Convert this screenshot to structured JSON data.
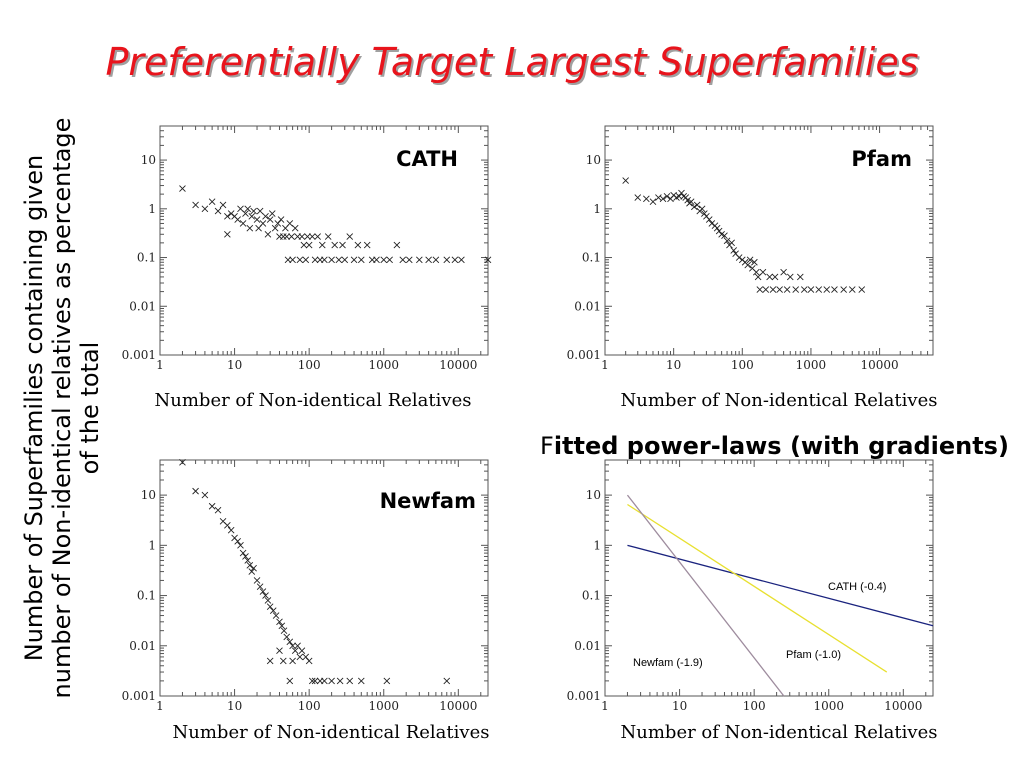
{
  "slide": {
    "title": "Preferentially Target Largest Superfamilies",
    "ylabel": "Number of Superfamilies containing given number of Non-identical relatives as percentage of the total",
    "fitted_heading_first": "F",
    "fitted_heading_rest": "itted power-laws (with gradients)"
  },
  "chart_data": [
    {
      "type": "scatter",
      "title": "CATH",
      "xlabel": "Number of Non-identical Relatives",
      "xscale": "log",
      "yscale": "log",
      "xlim": [
        1,
        25000
      ],
      "ylim": [
        0.001,
        50
      ],
      "xticks": [
        "1",
        "10",
        "100",
        "1000",
        "10000"
      ],
      "yticks": [
        "0.001",
        "0.01",
        "0.1",
        "1",
        "10"
      ],
      "marker": "x",
      "points": [
        [
          2,
          2.6
        ],
        [
          3,
          1.2
        ],
        [
          4,
          1.0
        ],
        [
          5,
          1.4
        ],
        [
          6,
          0.9
        ],
        [
          7,
          1.2
        ],
        [
          8,
          0.7
        ],
        [
          8,
          0.3
        ],
        [
          9,
          0.8
        ],
        [
          10,
          0.7
        ],
        [
          11,
          0.6
        ],
        [
          12,
          1.0
        ],
        [
          13,
          0.5
        ],
        [
          14,
          0.8
        ],
        [
          15,
          1.0
        ],
        [
          16,
          0.4
        ],
        [
          17,
          0.7
        ],
        [
          18,
          0.9
        ],
        [
          20,
          0.6
        ],
        [
          21,
          0.4
        ],
        [
          22,
          0.9
        ],
        [
          24,
          0.5
        ],
        [
          26,
          0.7
        ],
        [
          28,
          0.3
        ],
        [
          30,
          0.6
        ],
        [
          32,
          0.8
        ],
        [
          35,
          0.4
        ],
        [
          38,
          0.5
        ],
        [
          40,
          0.27
        ],
        [
          42,
          0.6
        ],
        [
          45,
          0.27
        ],
        [
          48,
          0.4
        ],
        [
          50,
          0.27
        ],
        [
          52,
          0.09
        ],
        [
          55,
          0.5
        ],
        [
          58,
          0.27
        ],
        [
          60,
          0.09
        ],
        [
          65,
          0.4
        ],
        [
          70,
          0.27
        ],
        [
          75,
          0.09
        ],
        [
          80,
          0.27
        ],
        [
          85,
          0.18
        ],
        [
          90,
          0.09
        ],
        [
          95,
          0.27
        ],
        [
          100,
          0.18
        ],
        [
          110,
          0.27
        ],
        [
          120,
          0.09
        ],
        [
          130,
          0.27
        ],
        [
          140,
          0.09
        ],
        [
          150,
          0.18
        ],
        [
          160,
          0.09
        ],
        [
          180,
          0.27
        ],
        [
          200,
          0.09
        ],
        [
          220,
          0.18
        ],
        [
          250,
          0.09
        ],
        [
          280,
          0.18
        ],
        [
          300,
          0.09
        ],
        [
          350,
          0.27
        ],
        [
          400,
          0.09
        ],
        [
          450,
          0.18
        ],
        [
          500,
          0.09
        ],
        [
          600,
          0.18
        ],
        [
          700,
          0.09
        ],
        [
          800,
          0.09
        ],
        [
          1000,
          0.09
        ],
        [
          1200,
          0.09
        ],
        [
          1500,
          0.18
        ],
        [
          1800,
          0.09
        ],
        [
          2200,
          0.09
        ],
        [
          3000,
          0.09
        ],
        [
          4000,
          0.09
        ],
        [
          5000,
          0.09
        ],
        [
          7000,
          0.09
        ],
        [
          9000,
          0.09
        ],
        [
          11000,
          0.09
        ],
        [
          25000,
          0.09
        ]
      ]
    },
    {
      "type": "scatter",
      "title": "Pfam",
      "xlabel": "Number of Non-identical Relatives",
      "xscale": "log",
      "yscale": "log",
      "xlim": [
        1,
        60000
      ],
      "ylim": [
        0.001,
        50
      ],
      "xticks": [
        "1",
        "10",
        "100",
        "1000",
        "10000"
      ],
      "yticks": [
        "0.001",
        "0.01",
        "0.1",
        "1",
        "10"
      ],
      "marker": "x",
      "points": [
        [
          2,
          3.8
        ],
        [
          3,
          1.7
        ],
        [
          4,
          1.6
        ],
        [
          5,
          1.4
        ],
        [
          6,
          1.7
        ],
        [
          7,
          1.6
        ],
        [
          8,
          1.8
        ],
        [
          9,
          1.6
        ],
        [
          10,
          1.9
        ],
        [
          11,
          1.7
        ],
        [
          12,
          1.8
        ],
        [
          13,
          2.1
        ],
        [
          14,
          1.8
        ],
        [
          15,
          1.7
        ],
        [
          16,
          1.5
        ],
        [
          17,
          1.3
        ],
        [
          18,
          1.4
        ],
        [
          20,
          1.1
        ],
        [
          22,
          1.2
        ],
        [
          24,
          0.9
        ],
        [
          26,
          1.0
        ],
        [
          28,
          0.8
        ],
        [
          30,
          0.7
        ],
        [
          33,
          0.6
        ],
        [
          36,
          0.5
        ],
        [
          40,
          0.45
        ],
        [
          43,
          0.4
        ],
        [
          46,
          0.35
        ],
        [
          50,
          0.3
        ],
        [
          55,
          0.28
        ],
        [
          60,
          0.22
        ],
        [
          65,
          0.18
        ],
        [
          70,
          0.2
        ],
        [
          75,
          0.14
        ],
        [
          80,
          0.12
        ],
        [
          90,
          0.1
        ],
        [
          100,
          0.09
        ],
        [
          110,
          0.08
        ],
        [
          120,
          0.07
        ],
        [
          130,
          0.09
        ],
        [
          140,
          0.06
        ],
        [
          150,
          0.08
        ],
        [
          160,
          0.05
        ],
        [
          170,
          0.04
        ],
        [
          180,
          0.022
        ],
        [
          200,
          0.05
        ],
        [
          220,
          0.022
        ],
        [
          250,
          0.04
        ],
        [
          280,
          0.022
        ],
        [
          300,
          0.04
        ],
        [
          350,
          0.022
        ],
        [
          400,
          0.05
        ],
        [
          450,
          0.022
        ],
        [
          500,
          0.04
        ],
        [
          600,
          0.022
        ],
        [
          700,
          0.04
        ],
        [
          800,
          0.022
        ],
        [
          1000,
          0.022
        ],
        [
          1300,
          0.022
        ],
        [
          1700,
          0.022
        ],
        [
          2200,
          0.022
        ],
        [
          3000,
          0.022
        ],
        [
          4000,
          0.022
        ],
        [
          5500,
          0.022
        ]
      ]
    },
    {
      "type": "scatter",
      "title": "Newfam",
      "xlabel": "Number of Non-identical Relatives",
      "xscale": "log",
      "yscale": "log",
      "xlim": [
        1,
        25000
      ],
      "ylim": [
        0.001,
        50
      ],
      "xticks": [
        "1",
        "10",
        "100",
        "1000",
        "10000"
      ],
      "yticks": [
        "0.001",
        "0.01",
        "0.1",
        "1",
        "10"
      ],
      "marker": "x",
      "points": [
        [
          2,
          45
        ],
        [
          3,
          12
        ],
        [
          4,
          10
        ],
        [
          5,
          6
        ],
        [
          6,
          5
        ],
        [
          7,
          3
        ],
        [
          8,
          2.5
        ],
        [
          9,
          2
        ],
        [
          10,
          1.4
        ],
        [
          11,
          1.2
        ],
        [
          12,
          1
        ],
        [
          13,
          0.7
        ],
        [
          14,
          0.6
        ],
        [
          15,
          0.5
        ],
        [
          16,
          0.4
        ],
        [
          17,
          0.3
        ],
        [
          18,
          0.35
        ],
        [
          20,
          0.2
        ],
        [
          22,
          0.15
        ],
        [
          24,
          0.12
        ],
        [
          26,
          0.1
        ],
        [
          28,
          0.08
        ],
        [
          30,
          0.06
        ],
        [
          33,
          0.05
        ],
        [
          36,
          0.04
        ],
        [
          40,
          0.03
        ],
        [
          43,
          0.025
        ],
        [
          46,
          0.02
        ],
        [
          50,
          0.015
        ],
        [
          55,
          0.012
        ],
        [
          60,
          0.01
        ],
        [
          65,
          0.008
        ],
        [
          70,
          0.01
        ],
        [
          75,
          0.006
        ],
        [
          80,
          0.008
        ],
        [
          90,
          0.006
        ],
        [
          100,
          0.005
        ],
        [
          30,
          0.005
        ],
        [
          40,
          0.008
        ],
        [
          45,
          0.005
        ],
        [
          55,
          0.002
        ],
        [
          60,
          0.005
        ],
        [
          110,
          0.002
        ],
        [
          120,
          0.002
        ],
        [
          140,
          0.002
        ],
        [
          160,
          0.002
        ],
        [
          200,
          0.002
        ],
        [
          260,
          0.002
        ],
        [
          350,
          0.002
        ],
        [
          500,
          0.002
        ],
        [
          1100,
          0.002
        ],
        [
          7000,
          0.002
        ]
      ]
    },
    {
      "type": "line",
      "title": "",
      "xlabel": "Number of Non-identical Relatives",
      "xscale": "log",
      "yscale": "log",
      "xlim": [
        1,
        25000
      ],
      "ylim": [
        0.001,
        50
      ],
      "xticks": [
        "1",
        "10",
        "100",
        "1000",
        "10000"
      ],
      "yticks": [
        "0.001",
        "0.01",
        "0.1",
        "1",
        "10"
      ],
      "series": [
        {
          "name": "CATH (-0.4)",
          "color": "#1a237e",
          "x": [
            2,
            25000
          ],
          "y": [
            1.0,
            0.025
          ]
        },
        {
          "name": "Pfam (-1.0)",
          "color": "#e8e030",
          "x": [
            2,
            6000
          ],
          "y": [
            6.5,
            0.003
          ]
        },
        {
          "name": "Newfam (-1.9)",
          "color": "#9e8c9e",
          "x": [
            2,
            250
          ],
          "y": [
            10,
            0.001
          ]
        }
      ]
    }
  ]
}
